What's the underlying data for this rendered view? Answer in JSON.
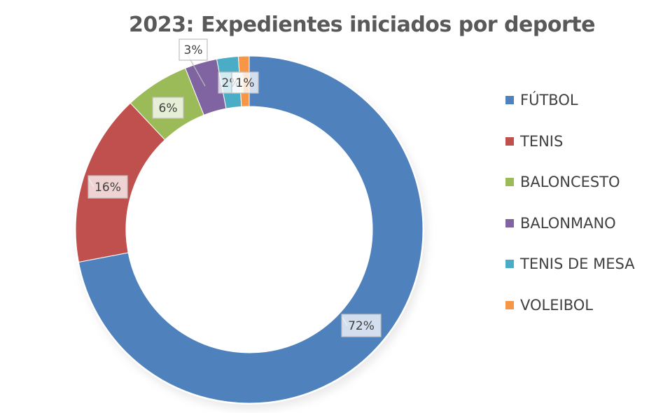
{
  "chart_data": {
    "type": "pie",
    "subtype": "doughnut",
    "title": "2023: Expedientes iniciados por deporte",
    "categories": [
      "FÚTBOL",
      "TENIS",
      "BALONCESTO",
      "BALONMANO",
      "TENIS DE MESA",
      "VOLEIBOL"
    ],
    "values": [
      72,
      16,
      6,
      3,
      2,
      1
    ],
    "data_labels": [
      "72%",
      "16%",
      "6%",
      "3%",
      "2%",
      "1%"
    ],
    "colors": [
      "#4F81BD",
      "#C0504D",
      "#9BBB59",
      "#8064A2",
      "#4BACC6",
      "#F79646"
    ],
    "legend_position": "right"
  }
}
